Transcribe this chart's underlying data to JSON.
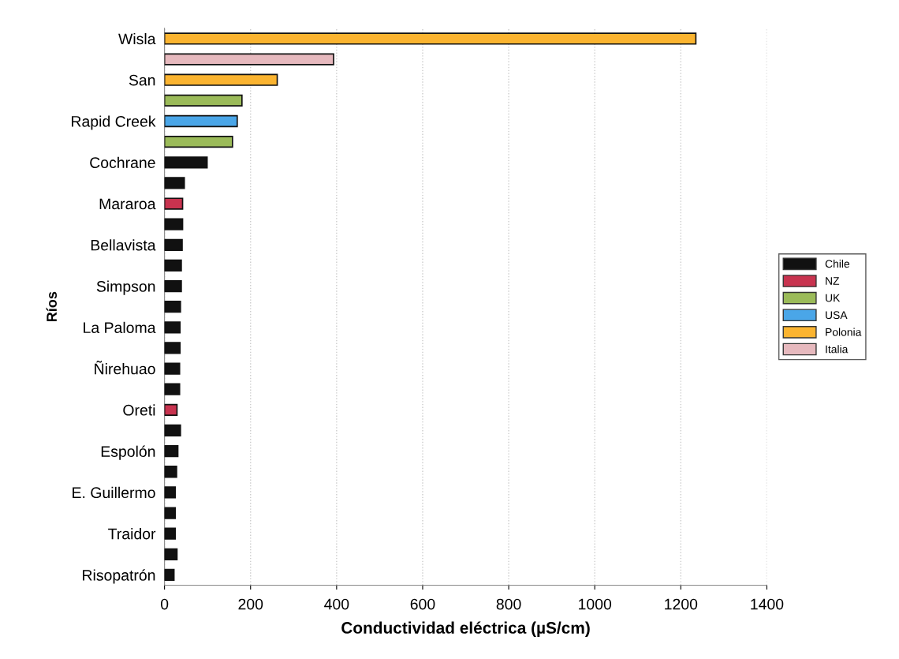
{
  "chart_data": {
    "type": "bar",
    "orientation": "horizontal",
    "xlabel": "Conductividad eléctrica (µS/cm)",
    "ylabel": "Ríos",
    "categories": [
      "Wisla",
      null,
      "San",
      null,
      "Rapid Creek",
      null,
      "Cochrane",
      null,
      "Mararoa",
      null,
      "Bellavista",
      null,
      "Simpson",
      null,
      "La Paloma",
      null,
      "Ñirehuao",
      null,
      "Oreti",
      null,
      "Espolón",
      null,
      "E. Guillermo",
      null,
      "Traidor",
      null,
      "Risopatrón"
    ],
    "series": [
      {
        "name": "Chile",
        "color": "#111111",
        "values": [
          null,
          null,
          null,
          null,
          null,
          null,
          99,
          46,
          null,
          42,
          41,
          39,
          39,
          37,
          36,
          36,
          35,
          35,
          null,
          37,
          31,
          28,
          25,
          25,
          25,
          29,
          22
        ]
      },
      {
        "name": "NZ",
        "color": "#c8334f",
        "values": [
          null,
          null,
          null,
          null,
          null,
          null,
          null,
          null,
          42,
          null,
          null,
          null,
          null,
          null,
          null,
          null,
          null,
          null,
          29,
          null,
          null,
          null,
          null,
          null,
          null,
          null,
          null
        ]
      },
      {
        "name": "UK",
        "color": "#9bbb59",
        "values": [
          null,
          null,
          null,
          180,
          null,
          158,
          null,
          null,
          null,
          null,
          null,
          null,
          null,
          null,
          null,
          null,
          null,
          null,
          null,
          null,
          null,
          null,
          null,
          null,
          null,
          null,
          null
        ]
      },
      {
        "name": "USA",
        "color": "#4aa6e8",
        "values": [
          null,
          null,
          null,
          null,
          169,
          null,
          null,
          null,
          null,
          null,
          null,
          null,
          null,
          null,
          null,
          null,
          null,
          null,
          null,
          null,
          null,
          null,
          null,
          null,
          null,
          null,
          null
        ]
      },
      {
        "name": "Polonia",
        "color": "#fbb430",
        "values": [
          1235,
          null,
          262,
          null,
          null,
          null,
          null,
          null,
          null,
          null,
          null,
          null,
          null,
          null,
          null,
          null,
          null,
          null,
          null,
          null,
          null,
          null,
          null,
          null,
          null,
          null,
          null
        ]
      },
      {
        "name": "Italia",
        "color": "#e6b9be",
        "values": [
          null,
          393,
          null,
          null,
          null,
          null,
          null,
          null,
          null,
          null,
          null,
          null,
          null,
          null,
          null,
          null,
          null,
          null,
          null,
          null,
          null,
          null,
          null,
          null,
          null,
          null,
          null
        ]
      }
    ],
    "xlim": [
      0,
      1400
    ],
    "xticks": [
      0,
      200,
      400,
      600,
      800,
      1000,
      1200,
      1400
    ],
    "grid": "x",
    "legend": "right"
  }
}
